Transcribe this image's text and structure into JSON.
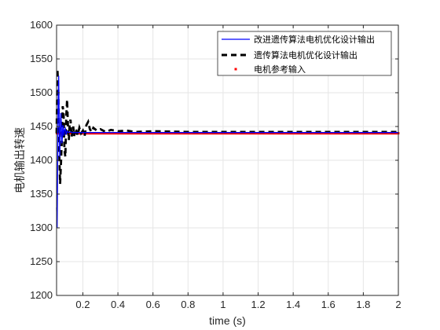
{
  "chart_data": {
    "type": "line",
    "xlabel": "time (s)",
    "ylabel": "电机输出转速",
    "xlim": [
      0.05,
      2
    ],
    "ylim": [
      1200,
      1600
    ],
    "xticks": [
      0.2,
      0.4,
      0.6,
      0.8,
      1,
      1.2,
      1.4,
      1.6,
      1.8,
      2
    ],
    "xtick_labels": [
      "0.2",
      "0.4",
      "0.6",
      "0.8",
      "1",
      "1.2",
      "1.4",
      "1.6",
      "1.8",
      "2"
    ],
    "yticks": [
      1200,
      1250,
      1300,
      1350,
      1400,
      1450,
      1500,
      1550,
      1600
    ],
    "ytick_labels": [
      "1200",
      "1250",
      "1300",
      "1350",
      "1400",
      "1450",
      "1500",
      "1550",
      "1600"
    ],
    "grid": true,
    "legend_position": "top-right",
    "colors": {
      "improved": "#0000ff",
      "ga": "#000000",
      "reference": "#ff0000",
      "grid": "#e6e6e6",
      "axis": "#262626"
    },
    "series": [
      {
        "name": "改进遗传算法电机优化设计输出",
        "style": "solid",
        "x": [
          0.05,
          0.053,
          0.056,
          0.059,
          0.062,
          0.065,
          0.068,
          0.071,
          0.074,
          0.077,
          0.08,
          0.083,
          0.086,
          0.089,
          0.092,
          0.095,
          0.1,
          0.105,
          0.11,
          0.12,
          0.13,
          0.14,
          0.16,
          0.2,
          0.3,
          0.5,
          1,
          1.5,
          2
        ],
        "y": [
          1330,
          1300,
          1380,
          1490,
          1525,
          1460,
          1405,
          1440,
          1470,
          1455,
          1425,
          1435,
          1452,
          1448,
          1436,
          1444,
          1447,
          1438,
          1443,
          1441,
          1442,
          1441,
          1441,
          1441,
          1441,
          1441,
          1441,
          1441,
          1441
        ]
      },
      {
        "name": "遗传算法电机优化设计输出",
        "style": "dashed",
        "x": [
          0.05,
          0.055,
          0.06,
          0.065,
          0.07,
          0.075,
          0.08,
          0.085,
          0.09,
          0.095,
          0.1,
          0.105,
          0.11,
          0.115,
          0.12,
          0.125,
          0.13,
          0.135,
          0.14,
          0.145,
          0.15,
          0.16,
          0.17,
          0.18,
          0.19,
          0.2,
          0.21,
          0.22,
          0.23,
          0.24,
          0.25,
          0.26,
          0.28,
          0.3,
          0.33,
          0.36,
          0.4,
          0.45,
          0.5,
          0.6,
          0.8,
          1,
          1.5,
          2
        ],
        "y": [
          1440,
          1535,
          1505,
          1415,
          1365,
          1395,
          1430,
          1480,
          1470,
          1415,
          1405,
          1465,
          1490,
          1450,
          1430,
          1455,
          1460,
          1435,
          1440,
          1450,
          1436,
          1447,
          1437,
          1448,
          1440,
          1444,
          1436,
          1452,
          1457,
          1446,
          1442,
          1448,
          1444,
          1446,
          1442,
          1445,
          1443,
          1444,
          1442,
          1443,
          1442,
          1442,
          1442,
          1442
        ]
      },
      {
        "name": "电机参考输入",
        "style": "markers",
        "constant": 1440
      }
    ]
  }
}
